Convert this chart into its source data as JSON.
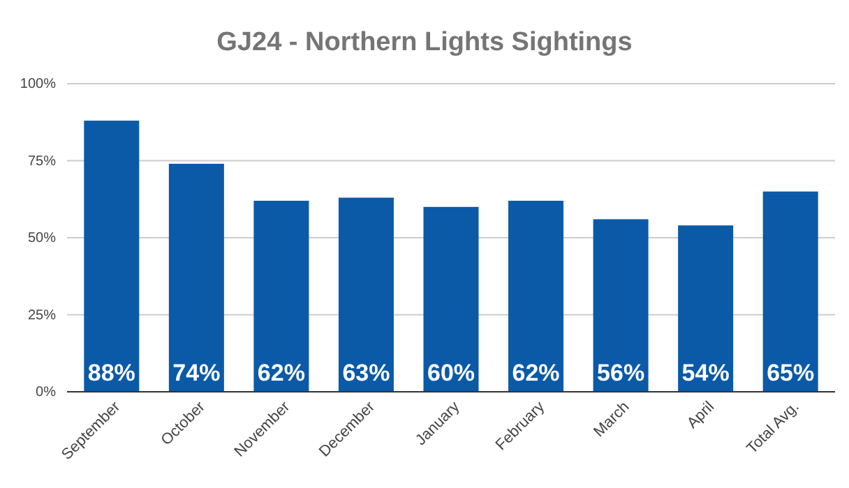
{
  "chart_data": {
    "type": "bar",
    "title": "GJ24 - Northern Lights Sightings",
    "categories": [
      "September",
      "October",
      "November",
      "December",
      "January",
      "February",
      "March",
      "April",
      "Total Avg."
    ],
    "values": [
      88,
      74,
      62,
      63,
      60,
      62,
      56,
      54,
      65
    ],
    "value_labels": [
      "88%",
      "74%",
      "62%",
      "63%",
      "60%",
      "62%",
      "56%",
      "54%",
      "65%"
    ],
    "color": "#0b5aa8",
    "ylim": [
      0,
      100
    ],
    "yticks": [
      {
        "value": 0,
        "label": "0%"
      },
      {
        "value": 25,
        "label": "25%"
      },
      {
        "value": 50,
        "label": "50%"
      },
      {
        "value": 75,
        "label": "75%"
      },
      {
        "value": 100,
        "label": "100%"
      }
    ],
    "grid": "y"
  }
}
